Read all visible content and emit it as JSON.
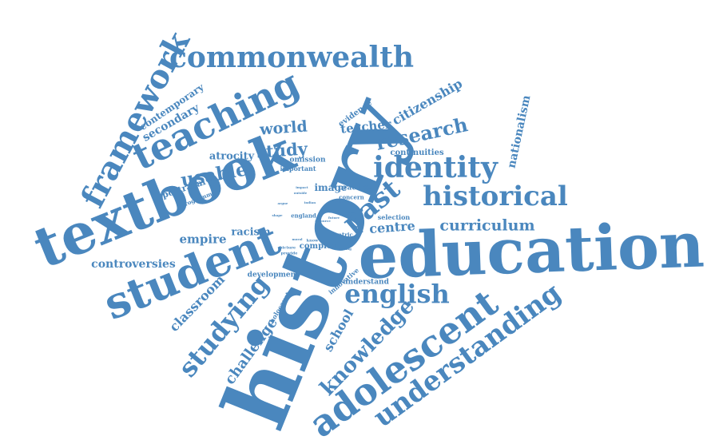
{
  "colors": {
    "word": "#4a87be",
    "background": "#ffffff"
  },
  "words": [
    "history",
    "textbook",
    "education",
    "student",
    "teaching",
    "adolescent",
    "understanding",
    "framework",
    "commonwealth",
    "identity",
    "historical",
    "studying",
    "english",
    "knowledge",
    "research",
    "past",
    "curriculum",
    "citizenship",
    "nationalism",
    "usable",
    "study",
    "world",
    "empire",
    "controversies",
    "classroom",
    "challenge",
    "school",
    "contemporary",
    "secondary",
    "racism",
    "atrocity",
    "portrayal",
    "teacher",
    "evidence",
    "image",
    "practice",
    "centre",
    "continuities",
    "selection",
    "concern",
    "omission",
    "important",
    "programme",
    "development",
    "complex",
    "holocaust",
    "understand",
    "innovative",
    "england",
    "centric",
    "impact",
    "picture",
    "provide",
    "offer",
    "know",
    "finding",
    "indian",
    "outside",
    "resource",
    "shape",
    "future",
    "moral",
    "argue",
    "effect"
  ]
}
